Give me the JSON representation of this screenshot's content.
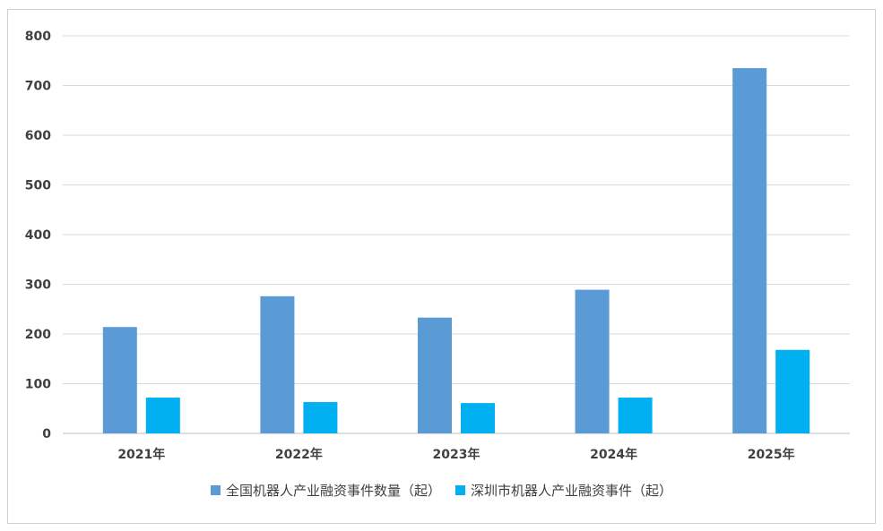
{
  "chart_data": {
    "type": "bar",
    "categories": [
      "2021年",
      "2022年",
      "2023年",
      "2024年",
      "2025年"
    ],
    "series": [
      {
        "name": "全国机器人产业融资事件数量（起）",
        "values": [
          214,
          276,
          233,
          289,
          735
        ],
        "color": "#5b9bd5"
      },
      {
        "name": "深圳市机器人产业融资事件（起）",
        "values": [
          72,
          63,
          61,
          72,
          168
        ],
        "color": "#00b0f0"
      }
    ],
    "title": "",
    "xlabel": "",
    "ylabel": "",
    "ylim": [
      0,
      800
    ],
    "yticks": [
      0,
      100,
      200,
      300,
      400,
      500,
      600,
      700,
      800
    ],
    "grid": true,
    "legend_position": "bottom"
  }
}
